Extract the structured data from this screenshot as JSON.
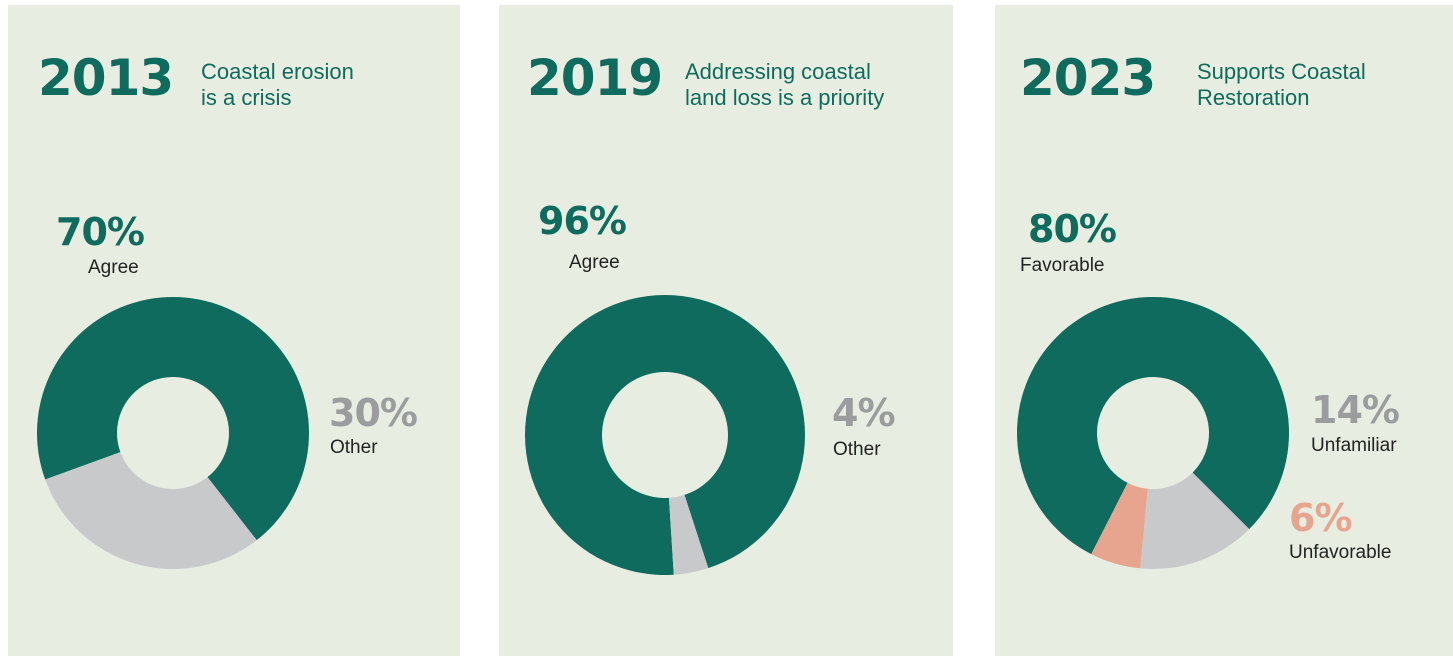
{
  "colors": {
    "green": "#0f6b5e",
    "grey": "#c8c9cb",
    "salmon": "#e7a58f",
    "panel_bg": "#e7eee1"
  },
  "chart_data": [
    {
      "type": "pie",
      "year": "2013",
      "title_lines": [
        "Coastal erosion",
        "is a crisis"
      ],
      "slices": [
        {
          "label": "Agree",
          "value": 70,
          "display": "70%",
          "color": "#0f6b5e"
        },
        {
          "label": "Other",
          "value": 30,
          "display": "30%",
          "color": "#c8c9cb"
        }
      ]
    },
    {
      "type": "pie",
      "year": "2019",
      "title_lines": [
        "Addressing coastal",
        "land loss is a priority"
      ],
      "slices": [
        {
          "label": "Agree",
          "value": 96,
          "display": "96%",
          "color": "#0f6b5e"
        },
        {
          "label": "Other",
          "value": 4,
          "display": "4%",
          "color": "#c8c9cb"
        }
      ]
    },
    {
      "type": "pie",
      "year": "2023",
      "title_lines": [
        "Supports Coastal",
        "Restoration"
      ],
      "slices": [
        {
          "label": "Favorable",
          "value": 80,
          "display": "80%",
          "color": "#0f6b5e"
        },
        {
          "label": "Unfamiliar",
          "value": 14,
          "display": "14%",
          "color": "#c8c9cb"
        },
        {
          "label": "Unfavorable",
          "value": 6,
          "display": "6%",
          "color": "#e7a58f"
        }
      ]
    }
  ]
}
